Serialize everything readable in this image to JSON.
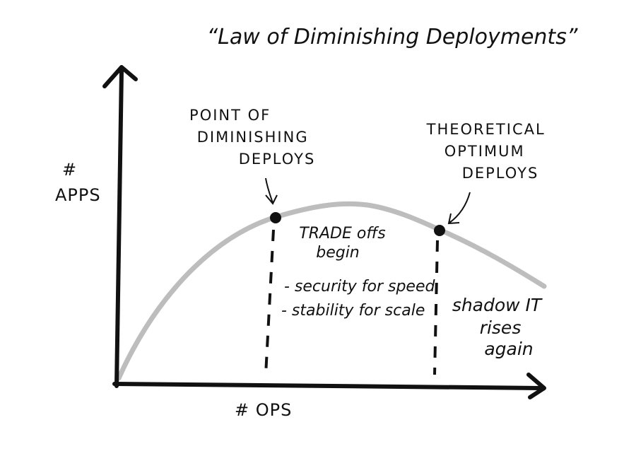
{
  "title": "“Law of Diminishing Deployments”",
  "y_axis_label": {
    "lines": [
      "#",
      "APPS"
    ]
  },
  "x_axis_label": "# OPS",
  "annotations": {
    "point_of_diminishing": {
      "lines": [
        "POINT OF",
        "DIMINISHING",
        "DEPLOYS"
      ]
    },
    "theoretical_optimum": {
      "lines": [
        "THEORETICAL",
        "OPTIMUM",
        "DEPLOYS"
      ]
    },
    "trade_offs": {
      "lines": [
        "TRADE offs",
        "begin"
      ]
    },
    "tradeoff_items": [
      "- security for speed",
      "- stability for scale"
    ],
    "shadow_it": {
      "lines": [
        "shadow IT",
        "rises",
        "again"
      ]
    }
  }
}
